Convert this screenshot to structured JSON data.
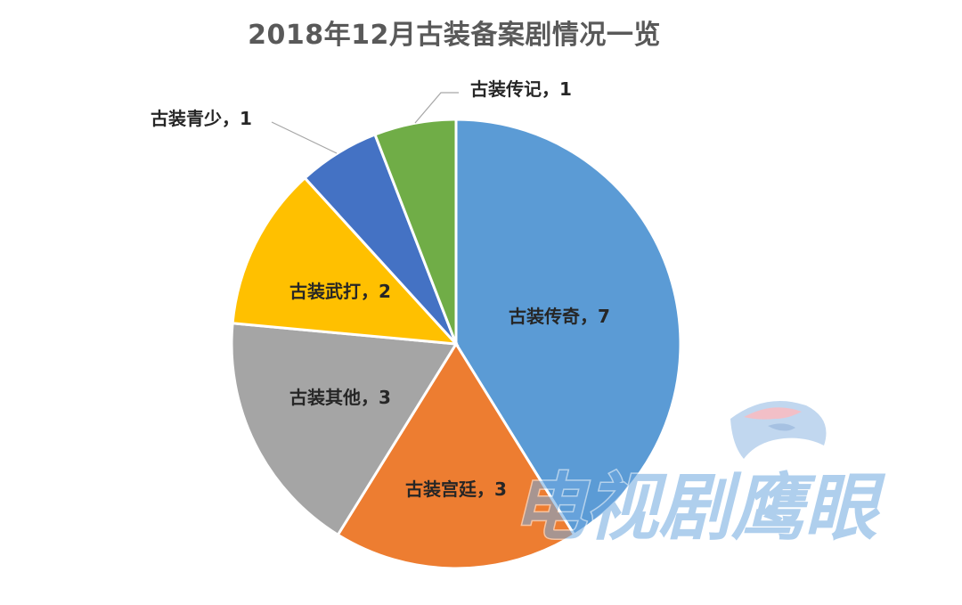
{
  "chart_data": {
    "type": "pie",
    "title": "2018年12月古装备案剧情况一览",
    "slices": [
      {
        "name": "古装传奇",
        "value": 7,
        "color": "#5B9BD5",
        "label": "古装传奇，7"
      },
      {
        "name": "古装宫廷",
        "value": 3,
        "color": "#ED7D31",
        "label": "古装宫廷，3"
      },
      {
        "name": "古装其他",
        "value": 3,
        "color": "#A5A5A5",
        "label": "古装其他，3"
      },
      {
        "name": "古装武打",
        "value": 2,
        "color": "#FFC000",
        "label": "古装武打，2"
      },
      {
        "name": "古装青少",
        "value": 1,
        "color": "#4472C4",
        "label": "古装青少，1"
      },
      {
        "name": "古装传记",
        "value": 1,
        "color": "#70AD47",
        "label": "古装传记，1"
      }
    ],
    "start_angle": "12 o'clock",
    "direction": "clockwise",
    "legend": "none"
  },
  "watermark": {
    "text": "电视剧鹰眼",
    "color": "#6FA9E0"
  }
}
